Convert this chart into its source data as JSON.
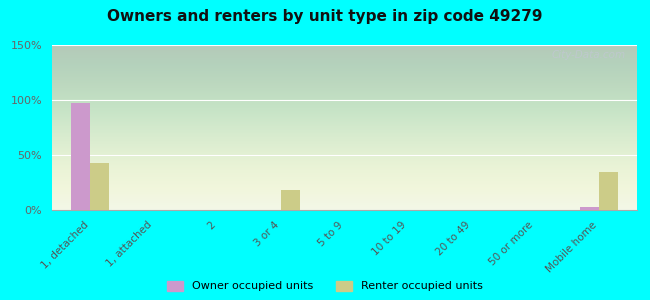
{
  "title": "Owners and renters by unit type in zip code 49279",
  "categories": [
    "1, detached",
    "1, attached",
    "2",
    "3 or 4",
    "5 to 9",
    "10 to 19",
    "20 to 49",
    "50 or more",
    "Mobile home"
  ],
  "owner_values": [
    97,
    0,
    0,
    0,
    0,
    0,
    0,
    0,
    3
  ],
  "renter_values": [
    43,
    0,
    0,
    18,
    0,
    0,
    0,
    0,
    35
  ],
  "owner_color": "#cc99cc",
  "renter_color": "#cccc88",
  "background_color": "#00ffff",
  "ylim": [
    0,
    150
  ],
  "yticks": [
    0,
    50,
    100,
    150
  ],
  "ytick_labels": [
    "0%",
    "50%",
    "100%",
    "150%"
  ],
  "bar_width": 0.3,
  "legend_owner": "Owner occupied units",
  "legend_renter": "Renter occupied units",
  "watermark": "City-Data.com"
}
